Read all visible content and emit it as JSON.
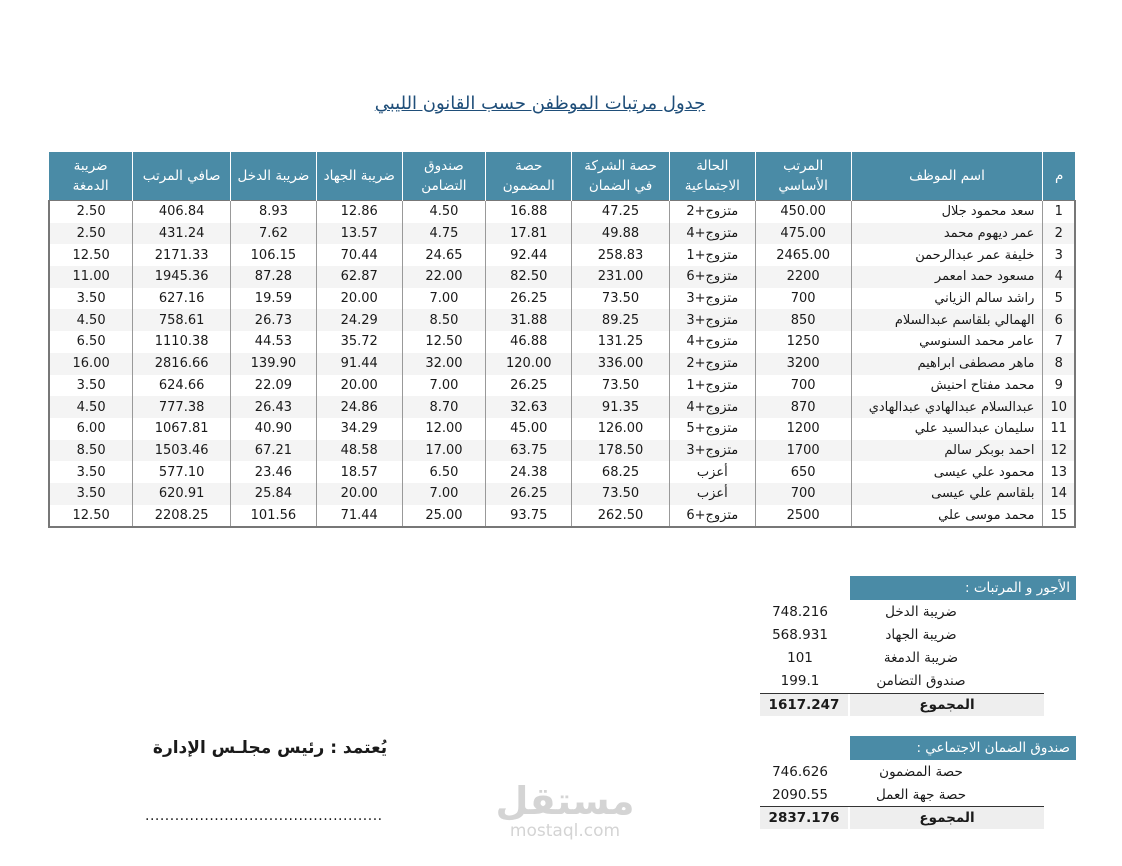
{
  "title": "جدول مرتبات الموظفن حسب القانون الليبي",
  "table": {
    "headers": {
      "stamp_tax": [
        "ضريبة",
        "الدمغة"
      ],
      "net_salary": "صافي المرتب",
      "income_tax": "ضريبة الدخل",
      "jihad_tax": "ضريبة الجهاد",
      "solidarity_fund": [
        "صندوق",
        "التضامن"
      ],
      "insured_share": [
        "حصة",
        "المضمون"
      ],
      "company_share": [
        "حصة الشركة",
        "في الضمان"
      ],
      "social_status": [
        "الحالة",
        "الاجتماعية"
      ],
      "basic_salary": [
        "المرتب",
        "الأساسي"
      ],
      "employee_name": "اسم الموظف",
      "index": "م"
    },
    "rows": [
      {
        "n": "1",
        "name": "سعد محمود جلال",
        "basic": "450.00",
        "status": "متزوج+2",
        "company": "47.25",
        "insured": "16.88",
        "fund": "4.50",
        "jihad": "12.86",
        "income": "8.93",
        "net": "406.84",
        "stamp": "2.50"
      },
      {
        "n": "2",
        "name": "عمر ديهوم محمد",
        "basic": "475.00",
        "status": "متزوج+4",
        "company": "49.88",
        "insured": "17.81",
        "fund": "4.75",
        "jihad": "13.57",
        "income": "7.62",
        "net": "431.24",
        "stamp": "2.50"
      },
      {
        "n": "3",
        "name": "خليفة عمر عبدالرحمن",
        "basic": "2465.00",
        "status": "متزوج+1",
        "company": "258.83",
        "insured": "92.44",
        "fund": "24.65",
        "jihad": "70.44",
        "income": "106.15",
        "net": "2171.33",
        "stamp": "12.50"
      },
      {
        "n": "4",
        "name": "مسعود حمد امعمر",
        "basic": "2200",
        "status": "متزوج+6",
        "company": "231.00",
        "insured": "82.50",
        "fund": "22.00",
        "jihad": "62.87",
        "income": "87.28",
        "net": "1945.36",
        "stamp": "11.00"
      },
      {
        "n": "5",
        "name": "راشد سالم الزياني",
        "basic": "700",
        "status": "متزوج+3",
        "company": "73.50",
        "insured": "26.25",
        "fund": "7.00",
        "jihad": "20.00",
        "income": "19.59",
        "net": "627.16",
        "stamp": "3.50"
      },
      {
        "n": "6",
        "name": "الهمالي بلقاسم عبدالسلام",
        "basic": "850",
        "status": "متزوج+3",
        "company": "89.25",
        "insured": "31.88",
        "fund": "8.50",
        "jihad": "24.29",
        "income": "26.73",
        "net": "758.61",
        "stamp": "4.50"
      },
      {
        "n": "7",
        "name": "عامر محمد السنوسي",
        "basic": "1250",
        "status": "متزوج+4",
        "company": "131.25",
        "insured": "46.88",
        "fund": "12.50",
        "jihad": "35.72",
        "income": "44.53",
        "net": "1110.38",
        "stamp": "6.50"
      },
      {
        "n": "8",
        "name": "ماهر مصطفى ابراهيم",
        "basic": "3200",
        "status": "متزوج+2",
        "company": "336.00",
        "insured": "120.00",
        "fund": "32.00",
        "jihad": "91.44",
        "income": "139.90",
        "net": "2816.66",
        "stamp": "16.00"
      },
      {
        "n": "9",
        "name": "محمد مفتاح احنيش",
        "basic": "700",
        "status": "متزوج+1",
        "company": "73.50",
        "insured": "26.25",
        "fund": "7.00",
        "jihad": "20.00",
        "income": "22.09",
        "net": "624.66",
        "stamp": "3.50"
      },
      {
        "n": "10",
        "name": "عبدالسلام عبدالهادي عبدالهادي",
        "basic": "870",
        "status": "متزوج+4",
        "company": "91.35",
        "insured": "32.63",
        "fund": "8.70",
        "jihad": "24.86",
        "income": "26.43",
        "net": "777.38",
        "stamp": "4.50"
      },
      {
        "n": "11",
        "name": "سليمان عبدالسيد علي",
        "basic": "1200",
        "status": "متزوج+5",
        "company": "126.00",
        "insured": "45.00",
        "fund": "12.00",
        "jihad": "34.29",
        "income": "40.90",
        "net": "1067.81",
        "stamp": "6.00"
      },
      {
        "n": "12",
        "name": "احمد بوبكر سالم",
        "basic": "1700",
        "status": "متزوج+3",
        "company": "178.50",
        "insured": "63.75",
        "fund": "17.00",
        "jihad": "48.58",
        "income": "67.21",
        "net": "1503.46",
        "stamp": "8.50"
      },
      {
        "n": "13",
        "name": "محمود علي عيسى",
        "basic": "650",
        "status": "أعزب",
        "company": "68.25",
        "insured": "24.38",
        "fund": "6.50",
        "jihad": "18.57",
        "income": "23.46",
        "net": "577.10",
        "stamp": "3.50"
      },
      {
        "n": "14",
        "name": "بلقاسم علي عيسى",
        "basic": "700",
        "status": "أعزب",
        "company": "73.50",
        "insured": "26.25",
        "fund": "7.00",
        "jihad": "20.00",
        "income": "25.84",
        "net": "620.91",
        "stamp": "3.50"
      },
      {
        "n": "15",
        "name": "محمد موسى علي",
        "basic": "2500",
        "status": "متزوج+6",
        "company": "262.50",
        "insured": "93.75",
        "fund": "25.00",
        "jihad": "71.44",
        "income": "101.56",
        "net": "2208.25",
        "stamp": "12.50"
      }
    ]
  },
  "wages_summary": {
    "title": "الأجور و المرتبات :",
    "items": [
      {
        "label": "ضريبة الدخل",
        "value": "748.216"
      },
      {
        "label": "ضريبة الجهاد",
        "value": "568.931"
      },
      {
        "label": "ضريبة الدمغة",
        "value": "101"
      },
      {
        "label": "صندوق التضامن",
        "value": "199.1"
      }
    ],
    "total_label": "المجموع",
    "total_value": "1617.247"
  },
  "social_fund_summary": {
    "title": "صندوق الضمان الاجتماعي :",
    "items": [
      {
        "label": "حصة المضمون",
        "value": "746.626"
      },
      {
        "label": "حصة جهة العمل",
        "value": "2090.55"
      }
    ],
    "total_label": "المجموع",
    "total_value": "2837.176"
  },
  "approval": {
    "text": "يُعتمد : رئيس مجلـس الإدارة",
    "signature_line": "................................................"
  },
  "watermark": {
    "arabic": "مستقل",
    "latin": "mostaql.com"
  }
}
